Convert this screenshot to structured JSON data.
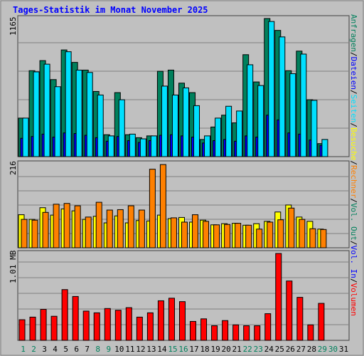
{
  "title": "Tages-Statistik im Monat November 2025",
  "colors": {
    "background": "#c0c0c0",
    "title": "#0000ff",
    "hits": "#00805c",
    "files": "#0000ff",
    "pages": "#00e0ff",
    "visits": "#ffff00",
    "sites": "#ff8000",
    "kbytes": "#ff0000",
    "weekend_label": "#00805c"
  },
  "legend_top": [
    {
      "label": "Anfragen",
      "color": "#00805c"
    },
    {
      "label": "Dateien",
      "color": "#0000ff"
    },
    {
      "label": "Seiten",
      "color": "#00e0ff"
    }
  ],
  "legend_middle": [
    {
      "label": "Besuche",
      "color": "#ffff00"
    },
    {
      "label": "Rechner",
      "color": "#ff8000"
    }
  ],
  "legend_bottom": [
    {
      "label": "Vol. Out",
      "color": "#00805c"
    },
    {
      "label": "Vol. In",
      "color": "#0000ff"
    },
    {
      "label": "Volumen",
      "color": "#ff0000"
    }
  ],
  "chart_data": [
    {
      "type": "bar",
      "panel": "top",
      "ymax_label": "1165",
      "ylim": [
        0,
        1165
      ],
      "grid": true,
      "categories": [
        "1",
        "2",
        "3",
        "4",
        "5",
        "6",
        "7",
        "8",
        "9",
        "10",
        "11",
        "12",
        "13",
        "14",
        "15",
        "16",
        "17",
        "18",
        "19",
        "20",
        "21",
        "22",
        "23",
        "24",
        "25",
        "26",
        "27",
        "28",
        "29",
        "30",
        "31"
      ],
      "series": [
        {
          "name": "Anfragen",
          "values": [
            325,
            725,
            810,
            650,
            900,
            795,
            730,
            550,
            185,
            540,
            185,
            160,
            175,
            720,
            730,
            620,
            540,
            145,
            250,
            350,
            285,
            860,
            630,
            1165,
            1065,
            725,
            890,
            480,
            110,
            0,
            0
          ]
        },
        {
          "name": "Dateien",
          "values": [
            155,
            170,
            190,
            165,
            200,
            195,
            180,
            160,
            130,
            170,
            135,
            120,
            135,
            180,
            185,
            175,
            165,
            115,
            135,
            145,
            130,
            175,
            165,
            350,
            310,
            200,
            190,
            140,
            95,
            0,
            0
          ]
        },
        {
          "name": "Seiten",
          "values": [
            325,
            715,
            780,
            590,
            885,
            730,
            710,
            520,
            175,
            480,
            190,
            150,
            175,
            595,
            520,
            580,
            430,
            175,
            325,
            425,
            385,
            775,
            600,
            1140,
            1010,
            700,
            865,
            475,
            145,
            0,
            0
          ]
        }
      ]
    },
    {
      "type": "bar",
      "panel": "middle",
      "ymax_label": "216",
      "ylim": [
        0,
        216
      ],
      "grid": true,
      "categories": [
        "1",
        "2",
        "3",
        "4",
        "5",
        "6",
        "7",
        "8",
        "9",
        "10",
        "11",
        "12",
        "13",
        "14",
        "15",
        "16",
        "17",
        "18",
        "19",
        "20",
        "21",
        "22",
        "23",
        "24",
        "25",
        "26",
        "27",
        "28",
        "29",
        "30",
        "31"
      ],
      "series": [
        {
          "name": "Besuche",
          "values": [
            85,
            73,
            103,
            84,
            100,
            95,
            73,
            81,
            64,
            82,
            64,
            70,
            69,
            84,
            75,
            78,
            66,
            71,
            59,
            62,
            63,
            58,
            62,
            68,
            92,
            110,
            79,
            68,
            48,
            0,
            0
          ]
        },
        {
          "name": "Rechner",
          "values": [
            73,
            71,
            91,
            112,
            114,
            108,
            79,
            117,
            97,
            98,
            108,
            97,
            202,
            214,
            77,
            66,
            85,
            68,
            59,
            60,
            63,
            58,
            48,
            66,
            72,
            102,
            73,
            49,
            47,
            0,
            0
          ]
        }
      ]
    },
    {
      "type": "bar",
      "panel": "bottom",
      "ymax_label": "1.01 MB",
      "ylim": [
        0,
        1.01
      ],
      "grid": true,
      "categories": [
        "1",
        "2",
        "3",
        "4",
        "5",
        "6",
        "7",
        "8",
        "9",
        "10",
        "11",
        "12",
        "13",
        "14",
        "15",
        "16",
        "17",
        "18",
        "19",
        "20",
        "21",
        "22",
        "23",
        "24",
        "25",
        "26",
        "27",
        "28",
        "29",
        "30",
        "31"
      ],
      "series": [
        {
          "name": "Volumen",
          "values": [
            0.24,
            0.27,
            0.36,
            0.28,
            0.59,
            0.51,
            0.34,
            0.32,
            0.37,
            0.35,
            0.38,
            0.27,
            0.32,
            0.46,
            0.49,
            0.45,
            0.22,
            0.25,
            0.17,
            0.23,
            0.18,
            0.17,
            0.17,
            0.31,
            1.01,
            0.69,
            0.5,
            0.18,
            0.43,
            0,
            0
          ]
        }
      ]
    }
  ],
  "day_labels": [
    {
      "text": "1",
      "weekend": true
    },
    {
      "text": "2",
      "weekend": true
    },
    {
      "text": "3",
      "weekend": false
    },
    {
      "text": "4",
      "weekend": false
    },
    {
      "text": "5",
      "weekend": false
    },
    {
      "text": "6",
      "weekend": false
    },
    {
      "text": "7",
      "weekend": false
    },
    {
      "text": "8",
      "weekend": true
    },
    {
      "text": "9",
      "weekend": true
    },
    {
      "text": "10",
      "weekend": false
    },
    {
      "text": "11",
      "weekend": false
    },
    {
      "text": "12",
      "weekend": false
    },
    {
      "text": "13",
      "weekend": false
    },
    {
      "text": "14",
      "weekend": false
    },
    {
      "text": "15",
      "weekend": true
    },
    {
      "text": "16",
      "weekend": true
    },
    {
      "text": "17",
      "weekend": false
    },
    {
      "text": "18",
      "weekend": false
    },
    {
      "text": "19",
      "weekend": false
    },
    {
      "text": "20",
      "weekend": false
    },
    {
      "text": "21",
      "weekend": false
    },
    {
      "text": "22",
      "weekend": true
    },
    {
      "text": "23",
      "weekend": true
    },
    {
      "text": "24",
      "weekend": false
    },
    {
      "text": "25",
      "weekend": false
    },
    {
      "text": "26",
      "weekend": false
    },
    {
      "text": "27",
      "weekend": false
    },
    {
      "text": "28",
      "weekend": false
    },
    {
      "text": "29",
      "weekend": true
    },
    {
      "text": "30",
      "weekend": true
    },
    {
      "text": "31",
      "weekend": false
    }
  ]
}
